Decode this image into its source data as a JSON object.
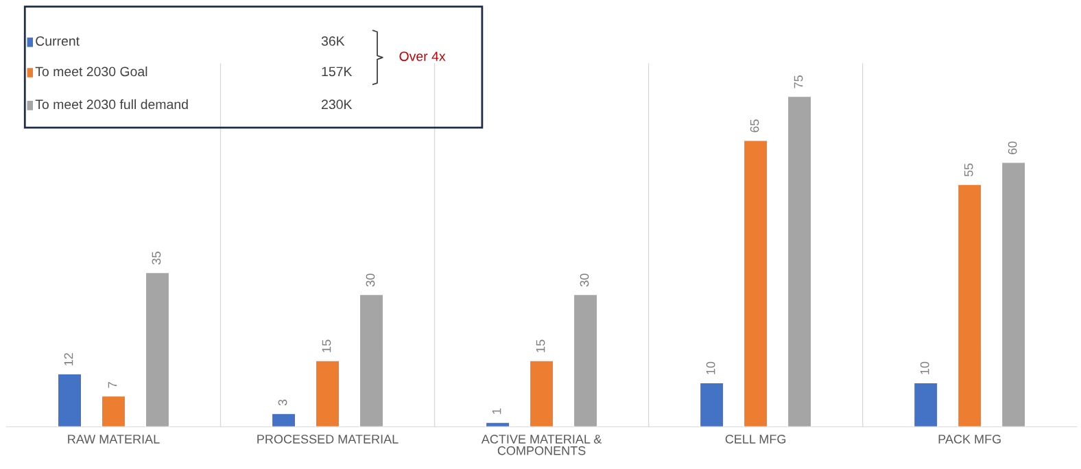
{
  "chart_data": {
    "type": "bar",
    "categories": [
      "RAW MATERIAL",
      "PROCESSED MATERIAL",
      "ACTIVE MATERIAL &\nCOMPONENTS",
      "CELL MFG",
      "PACK MFG"
    ],
    "series": [
      {
        "name": "Current",
        "color": "#4472c4",
        "values": [
          12,
          3,
          1,
          10,
          10
        ]
      },
      {
        "name": "To meet 2030 Goal",
        "color": "#ed7d31",
        "values": [
          7,
          15,
          15,
          65,
          55
        ]
      },
      {
        "name": "To meet 2030 full demand",
        "color": "#a5a5a5",
        "values": [
          35,
          30,
          30,
          75,
          60
        ]
      }
    ],
    "annotations": [
      "36K",
      "157K",
      "230K",
      "Over 4x"
    ],
    "data_labels": true,
    "grid": "x",
    "legend": "top left"
  }
}
